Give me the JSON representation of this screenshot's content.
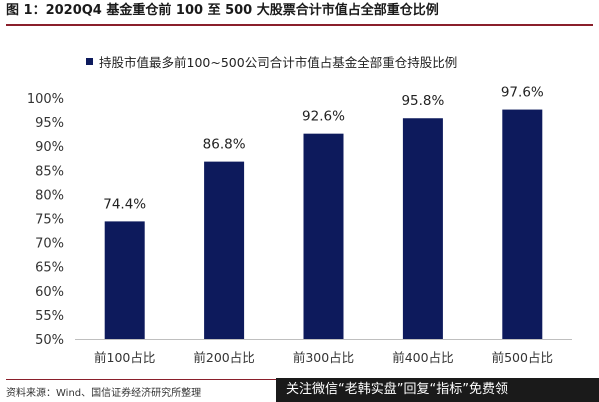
{
  "figure": {
    "title": "图 1：2020Q4 基金重仓前 100 至 500 大股票合计市值占全部重仓比例",
    "source": "资料来源：Wind、国信证券经济研究所整理"
  },
  "banner": {
    "text": "关注微信“老韩实盘”回复“指标”免费领"
  },
  "colors": {
    "bar": "#0d1a5c",
    "title_rule": "#8a1f2b",
    "axis": "#bfbfbf"
  },
  "chart_data": {
    "type": "bar",
    "categories": [
      "前100占比",
      "前200占比",
      "前300占比",
      "前400占比",
      "前500占比"
    ],
    "series": [
      {
        "name": "持股市值最多前100~500公司合计市值占基金全部重仓持股比例",
        "values": [
          74.4,
          86.8,
          92.6,
          95.8,
          97.6
        ]
      }
    ],
    "data_labels": [
      "74.4%",
      "86.8%",
      "92.6%",
      "95.8%",
      "97.6%"
    ],
    "ylim": [
      50,
      100
    ],
    "yticks": [
      50,
      55,
      60,
      65,
      70,
      75,
      80,
      85,
      90,
      95,
      100
    ],
    "ytick_labels": [
      "50%",
      "55%",
      "60%",
      "65%",
      "70%",
      "75%",
      "80%",
      "85%",
      "90%",
      "95%",
      "100%"
    ],
    "grid": false,
    "legend_position": "top-left"
  }
}
